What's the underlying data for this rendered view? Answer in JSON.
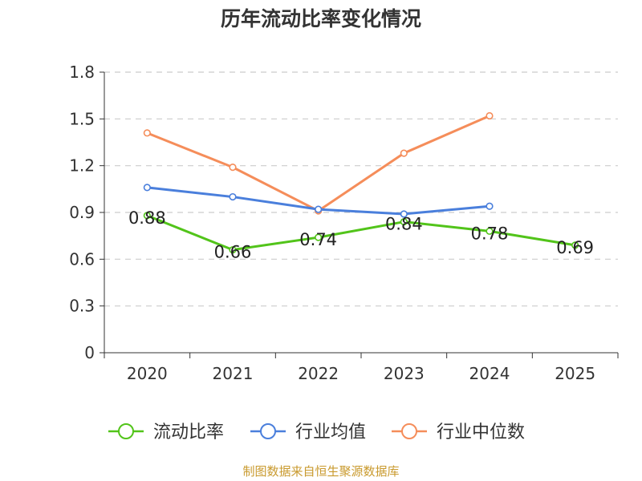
{
  "chart_data": {
    "type": "line",
    "title": "历年流动比率变化情况",
    "categories": [
      "2020",
      "2021",
      "2022",
      "2023",
      "2024",
      "2025"
    ],
    "ylim": [
      0,
      1.8
    ],
    "yticks": [
      0,
      0.3,
      0.6,
      0.9,
      1.2,
      1.5,
      1.8
    ],
    "ytick_labels": [
      "0",
      "0.3",
      "0.6",
      "0.9",
      "1.2",
      "1.5",
      "1.8"
    ],
    "grid": "horizontal-dashed",
    "legend_position": "bottom",
    "series": [
      {
        "name": "流动比率",
        "color": "#52c41a",
        "values": [
          0.88,
          0.66,
          0.74,
          0.84,
          0.78,
          0.69
        ],
        "labels": [
          "0.88",
          "0.66",
          "0.74",
          "0.84",
          "0.78",
          "0.69"
        ]
      },
      {
        "name": "行业均值",
        "color": "#4a7fdc",
        "values": [
          1.06,
          1.0,
          0.92,
          0.89,
          0.94,
          null
        ]
      },
      {
        "name": "行业中位数",
        "color": "#f58d5a",
        "values": [
          1.41,
          1.19,
          0.91,
          1.28,
          1.52,
          null
        ]
      }
    ]
  },
  "footer": {
    "source": "制图数据来自恒生聚源数据库"
  }
}
